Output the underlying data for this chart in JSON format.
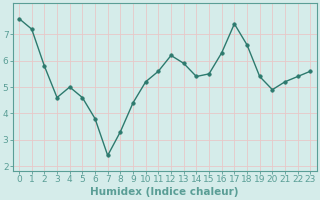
{
  "x": [
    0,
    1,
    2,
    3,
    4,
    5,
    6,
    7,
    8,
    9,
    10,
    11,
    12,
    13,
    14,
    15,
    16,
    17,
    18,
    19,
    20,
    21,
    22,
    23
  ],
  "y": [
    7.6,
    7.2,
    5.8,
    4.6,
    5.0,
    4.6,
    3.8,
    2.4,
    3.3,
    4.4,
    5.2,
    5.6,
    6.2,
    5.9,
    5.4,
    5.5,
    6.3,
    7.4,
    6.6,
    5.4,
    4.9,
    5.2,
    5.4,
    5.6
  ],
  "line_color": "#2d7a6e",
  "marker": "o",
  "marker_size": 2.5,
  "bg_color": "#d5ecea",
  "grid_color": "#c8dedd",
  "xlabel": "Humidex (Indice chaleur)",
  "xlabel_fontsize": 7.5,
  "tick_fontsize": 6.5,
  "ylim": [
    1.8,
    8.2
  ],
  "xlim": [
    -0.5,
    23.5
  ],
  "yticks": [
    2,
    3,
    4,
    5,
    6,
    7
  ],
  "xticks": [
    0,
    1,
    2,
    3,
    4,
    5,
    6,
    7,
    8,
    9,
    10,
    11,
    12,
    13,
    14,
    15,
    16,
    17,
    18,
    19,
    20,
    21,
    22,
    23
  ],
  "spine_color": "#5a9e96",
  "line_width": 1.0
}
